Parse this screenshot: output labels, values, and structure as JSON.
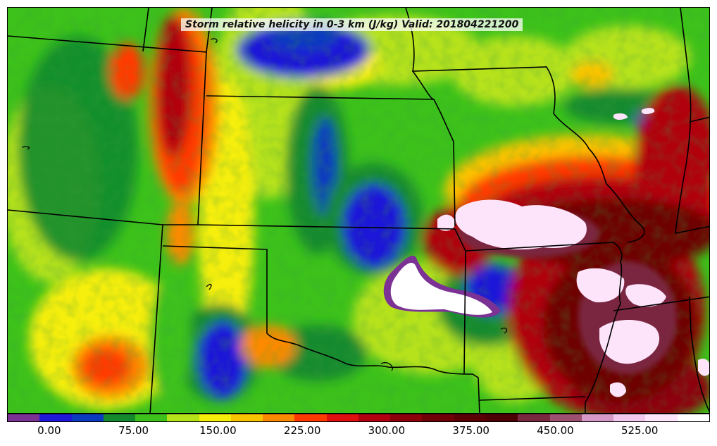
{
  "map": {
    "title": "Storm relative helicity in 0-3 km (J/kg) Valid: 201804221200",
    "field": "storm-relative-helicity-0-3km",
    "units": "J/kg",
    "valid_time": "201804221200"
  },
  "colorbar": {
    "colors": [
      "#7b3294",
      "#1f18d8",
      "#0b3bbf",
      "#138a2e",
      "#3cc21a",
      "#b6e21a",
      "#f6ee0a",
      "#f9c300",
      "#fb8a00",
      "#ff3a00",
      "#e01010",
      "#b10010",
      "#8d000a",
      "#6e0006",
      "#5a0004",
      "#4d0003",
      "#7a2840",
      "#9e5070",
      "#d79ac8",
      "#f2c8ef",
      "#fde4fb",
      "#ffffff"
    ],
    "tick_labels": [
      "0.00",
      "75.00",
      "150.00",
      "225.00",
      "300.00",
      "375.00",
      "450.00",
      "525.00"
    ],
    "tick_values": [
      0,
      75,
      150,
      225,
      300,
      375,
      450,
      525
    ],
    "range": [
      -37.5,
      587.5
    ]
  },
  "colors": {
    "state_border": "#000000",
    "background_frame": "#000000"
  }
}
